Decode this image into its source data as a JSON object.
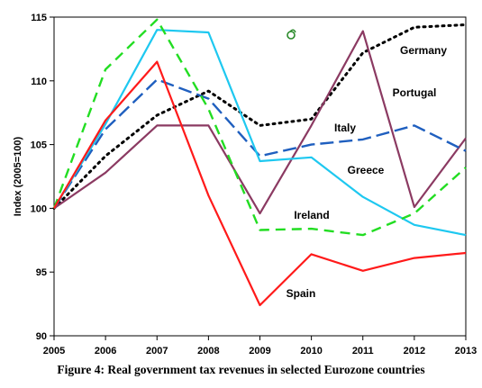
{
  "figure": {
    "caption": "Figure 4:  Real government tax revenues in selected Eurozone countries"
  },
  "chart_data": {
    "type": "line",
    "title": "",
    "xlabel": "",
    "ylabel": "Index (2005=100)",
    "x": [
      2005,
      2006,
      2007,
      2008,
      2009,
      2010,
      2011,
      2012,
      2013
    ],
    "ylim": [
      90,
      115
    ],
    "yticks": [
      90,
      95,
      100,
      105,
      110,
      115
    ],
    "grid": false,
    "series": [
      {
        "name": "Germany",
        "color": "#000000",
        "dash": "dotted",
        "values": [
          100,
          104.1,
          107.3,
          109.2,
          106.5,
          107.0,
          112.2,
          114.2,
          114.4
        ]
      },
      {
        "name": "Portugal",
        "color": "#8B3A62",
        "dash": "solid",
        "values": [
          100,
          102.8,
          106.5,
          106.5,
          99.6,
          106.5,
          113.9,
          100.1,
          105.5
        ]
      },
      {
        "name": "Italy",
        "color": "#1F5FBF",
        "dash": "long-dash",
        "values": [
          100,
          106.2,
          110.1,
          108.6,
          104.1,
          105.0,
          105.4,
          106.5,
          104.5
        ]
      },
      {
        "name": "Greece",
        "color": "#1EC8F0",
        "dash": "solid",
        "values": [
          100,
          106.6,
          114.0,
          113.8,
          103.7,
          104.0,
          100.9,
          98.7,
          97.9
        ]
      },
      {
        "name": "Ireland",
        "color": "#22DD22",
        "dash": "dashed",
        "values": [
          100,
          110.9,
          114.8,
          107.8,
          98.3,
          98.4,
          97.9,
          99.6,
          103.2
        ]
      },
      {
        "name": "Spain",
        "color": "#FF1A1A",
        "dash": "solid",
        "values": [
          100,
          106.9,
          111.5,
          101.0,
          92.4,
          96.4,
          95.1,
          96.1,
          96.5
        ]
      }
    ]
  }
}
